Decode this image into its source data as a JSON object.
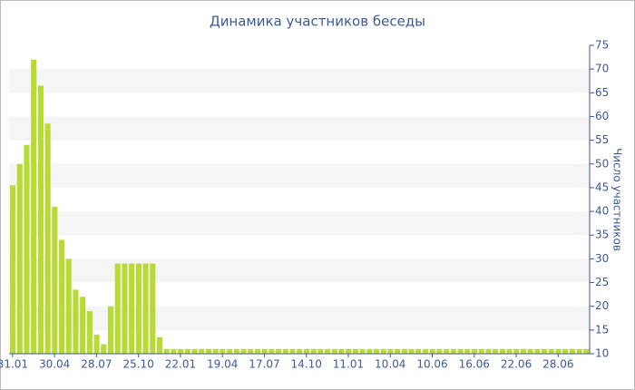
{
  "chart_data": {
    "type": "bar",
    "title": "Динамика участников беседы",
    "y_label": "Число участников",
    "color": "#b8da35",
    "grid": true,
    "ylim": [
      10,
      75
    ],
    "yticks": [
      10,
      15,
      20,
      25,
      30,
      35,
      40,
      45,
      50,
      55,
      60,
      65,
      70,
      75
    ],
    "categories": [
      "31.01",
      null,
      null,
      null,
      null,
      null,
      "30.04",
      null,
      null,
      null,
      null,
      null,
      "28.07",
      null,
      null,
      null,
      null,
      null,
      "25.10",
      null,
      null,
      null,
      null,
      null,
      "22.01",
      null,
      null,
      null,
      null,
      null,
      "19.04",
      null,
      null,
      null,
      null,
      null,
      "17.07",
      null,
      null,
      null,
      null,
      null,
      "14.10",
      null,
      null,
      null,
      null,
      null,
      "11.01",
      null,
      null,
      null,
      null,
      null,
      "10.04",
      null,
      null,
      null,
      null,
      null,
      "10.06",
      null,
      null,
      null,
      null,
      null,
      "16.06",
      null,
      null,
      null,
      null,
      null,
      "22.06",
      null,
      null,
      null,
      null,
      null,
      "28.06",
      null,
      null,
      null,
      null
    ],
    "values": [
      45.5,
      50,
      54,
      72,
      66.5,
      58.5,
      41,
      34,
      30,
      23.5,
      22,
      19,
      14,
      12,
      20,
      29,
      29,
      29,
      29,
      29,
      29,
      13.5,
      11,
      11,
      11,
      11,
      11,
      11,
      11,
      11,
      11,
      11,
      11,
      11,
      11,
      11,
      11,
      11,
      11,
      11,
      11,
      11,
      11,
      11,
      11,
      11,
      11,
      11,
      11,
      11,
      11,
      11,
      11,
      11,
      11,
      11,
      11,
      11,
      11,
      11,
      11,
      11,
      11,
      11,
      11,
      11,
      11,
      11,
      11,
      11,
      11,
      11,
      11,
      11,
      11,
      11,
      11,
      11,
      11,
      11,
      11,
      11,
      11
    ]
  }
}
